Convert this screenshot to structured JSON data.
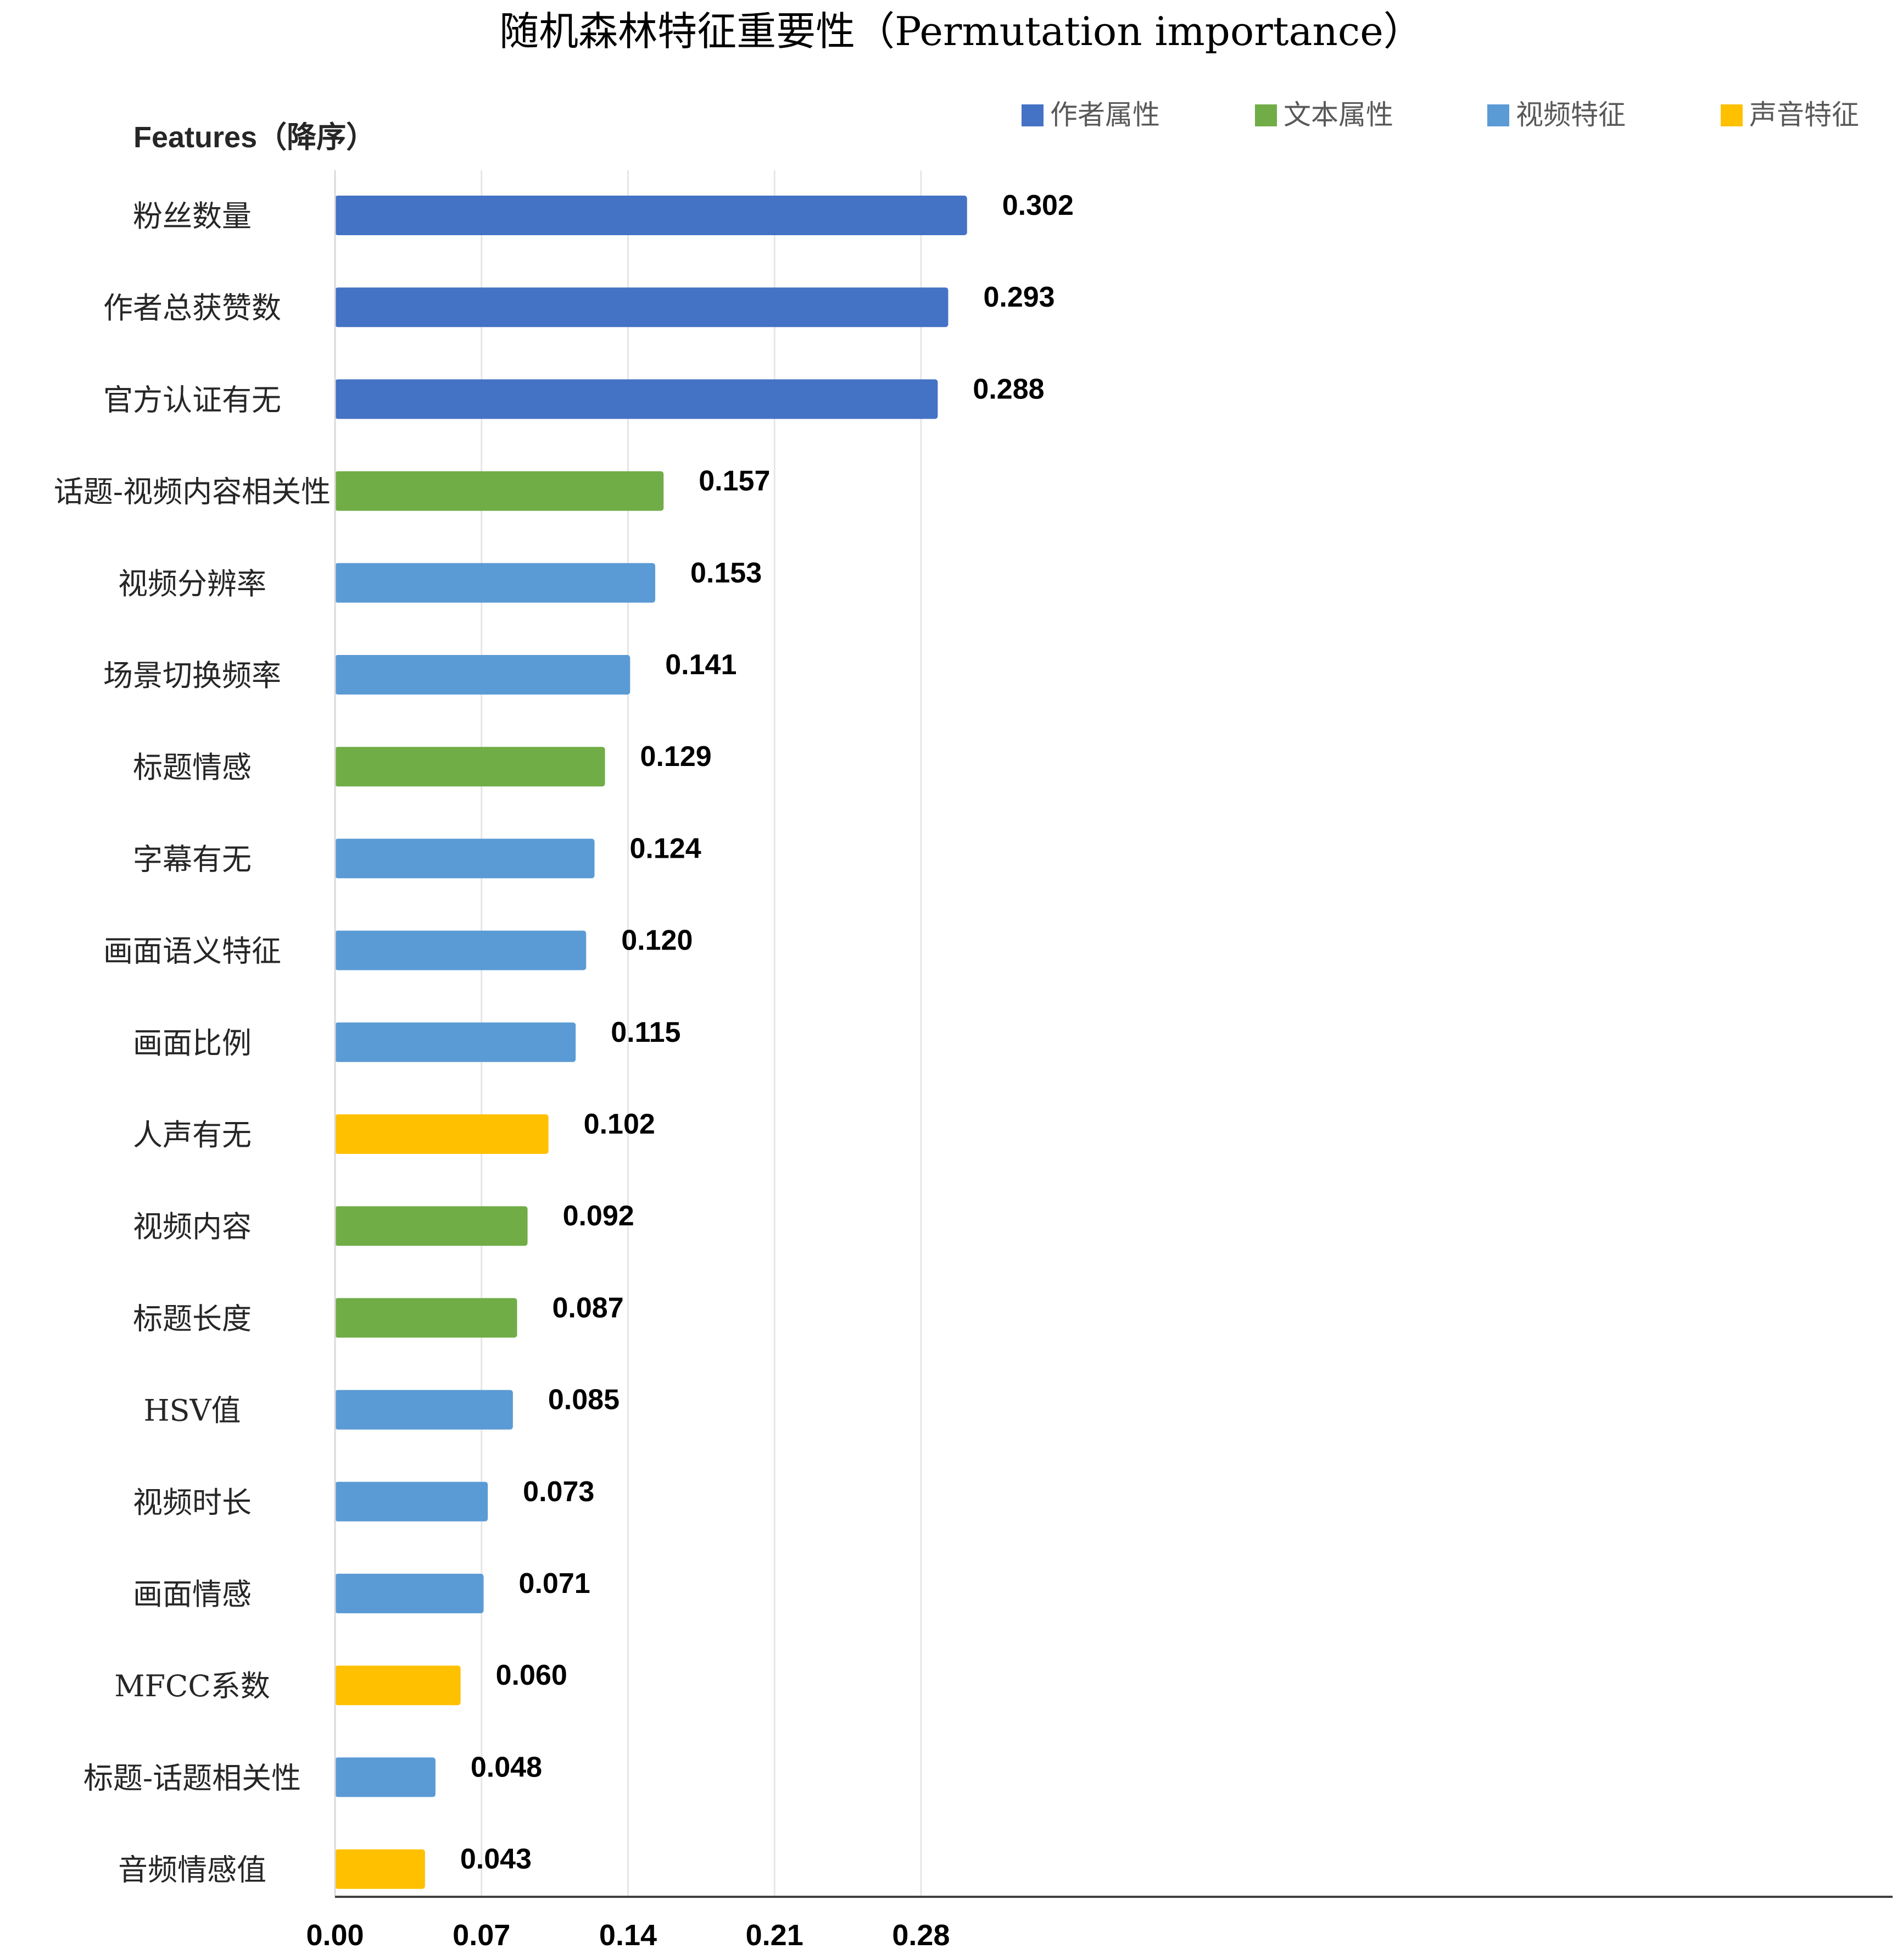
{
  "chart_data": {
    "type": "bar",
    "orientation": "horizontal",
    "title": "随机森林特征重要性（Permutation importance）",
    "ylabel": "Features（降序）",
    "xlabel": "",
    "xlim": [
      0,
      0.327
    ],
    "x_ticks": [
      "0.00",
      "0.07",
      "0.14",
      "0.21",
      "0.28"
    ],
    "x_tick_values": [
      0,
      0.07,
      0.14,
      0.21,
      0.28
    ],
    "grid": "vertical",
    "legend_position": "top-right",
    "legend": [
      {
        "name": "作者属性",
        "color": "#4472C4"
      },
      {
        "name": "文本属性",
        "color": "#70AD47"
      },
      {
        "name": "视频特征",
        "color": "#5B9BD5"
      },
      {
        "name": "声音特征",
        "color": "#FFC000"
      }
    ],
    "categories": [
      "粉丝数量",
      "作者总获赞数",
      "官方认证有无",
      "话题-视频内容相关性",
      "视频分辨率",
      "场景切换频率",
      "标题情感",
      "字幕有无",
      "画面语义特征",
      "画面比例",
      "人声有无",
      "视频内容",
      "标题长度",
      "HSV值",
      "视频时长",
      "画面情感",
      "MFCC系数",
      "标题-话题相关性",
      "音频情感值"
    ],
    "values": [
      0.302,
      0.293,
      0.288,
      0.157,
      0.153,
      0.141,
      0.129,
      0.124,
      0.12,
      0.115,
      0.102,
      0.092,
      0.087,
      0.085,
      0.073,
      0.071,
      0.06,
      0.048,
      0.043
    ],
    "value_labels": [
      "0.302",
      "0.293",
      "0.288",
      "0.157",
      "0.153",
      "0.141",
      "0.129",
      "0.124",
      "0.120",
      "0.115",
      "0.102",
      "0.092",
      "0.087",
      "0.085",
      "0.073",
      "0.071",
      "0.060",
      "0.048",
      "0.043"
    ],
    "groups": [
      "作者属性",
      "作者属性",
      "作者属性",
      "文本属性",
      "视频特征",
      "视频特征",
      "文本属性",
      "视频特征",
      "视频特征",
      "视频特征",
      "声音特征",
      "文本属性",
      "文本属性",
      "视频特征",
      "视频特征",
      "视频特征",
      "声音特征",
      "视频特征",
      "声音特征"
    ]
  }
}
